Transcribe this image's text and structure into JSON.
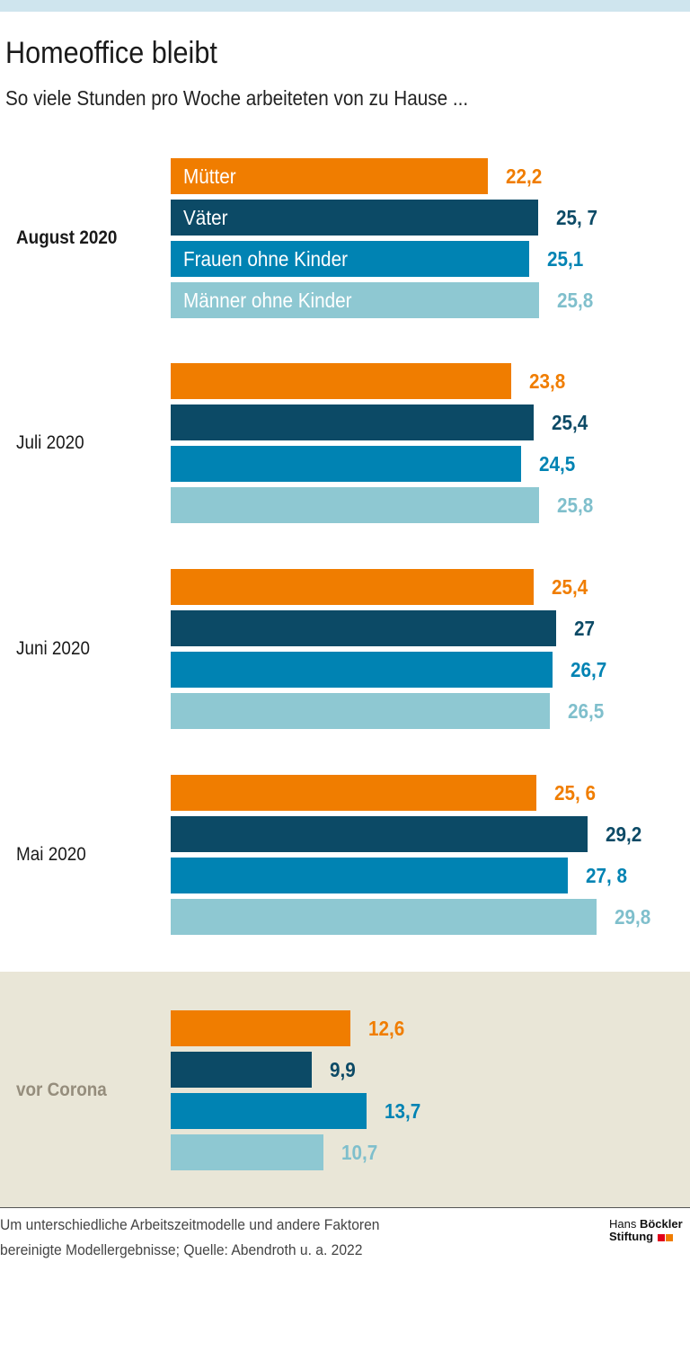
{
  "title": "Homeoffice bleibt",
  "subtitle": "So viele Stunden pro Woche arbeiteten von zu Hause ...",
  "chart_data": {
    "type": "bar",
    "orientation": "horizontal",
    "title": "Homeoffice bleibt",
    "subtitle": "So viele Stunden pro Woche arbeiteten von zu Hause ...",
    "xlim": [
      0,
      30
    ],
    "series": [
      {
        "name": "Mütter",
        "color": "#f07d00"
      },
      {
        "name": "Väter",
        "color": "#0c4a66"
      },
      {
        "name": "Frauen ohne Kinder",
        "color": "#0083b3"
      },
      {
        "name": "Männer ohne Kinder",
        "color": "#8ec8d2"
      }
    ],
    "groups": [
      {
        "label": "August 2020",
        "values": [
          22.2,
          25.7,
          25.1,
          25.8
        ],
        "value_labels": [
          "22,2",
          "25, 7",
          "25,1",
          "25,8"
        ]
      },
      {
        "label": "Juli 2020",
        "values": [
          23.8,
          25.4,
          24.5,
          25.8
        ],
        "value_labels": [
          "23,8",
          "25,4",
          "24,5",
          "25,8"
        ]
      },
      {
        "label": "Juni 2020",
        "values": [
          25.4,
          27,
          26.7,
          26.5
        ],
        "value_labels": [
          "25,4",
          "27",
          "26,7",
          "26,5"
        ]
      },
      {
        "label": "Mai 2020",
        "values": [
          25.6,
          29.2,
          27.8,
          29.8
        ],
        "value_labels": [
          "25, 6",
          "29,2",
          "27, 8",
          "29,8"
        ]
      },
      {
        "label": "vor Corona",
        "values": [
          12.6,
          9.9,
          13.7,
          10.7
        ],
        "value_labels": [
          "12,6",
          "9,9",
          "13,7",
          "10,7"
        ]
      }
    ]
  },
  "footnote": {
    "line1": "Um unterschiedliche Arbeitszeitmodelle und andere Faktoren",
    "line2": "bereinigte Modellergebnisse; Quelle: Abendroth u. a. 2022"
  },
  "logo": {
    "line1_a": "Hans ",
    "line1_b": "Böckler",
    "line2": "Stiftung",
    "colors": [
      "#e2001a",
      "#f07d00"
    ]
  }
}
